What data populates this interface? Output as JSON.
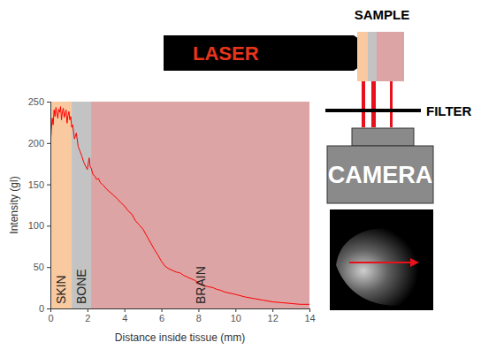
{
  "chart_data": {
    "type": "line",
    "x_label": "Distance inside tissue (mm)",
    "y_label": "Intensity (gl)",
    "color": "#ff0000",
    "xlim": [
      0,
      14
    ],
    "xticks": [
      0,
      2,
      4,
      6,
      8,
      10,
      12,
      14
    ],
    "ylim": [
      0,
      250
    ],
    "yticks": [
      0,
      50,
      100,
      150,
      200,
      250
    ],
    "regions": [
      {
        "label": "SKIN",
        "x0": 0,
        "x1": 1.15,
        "color": "#f9c9a0"
      },
      {
        "label": "BONE",
        "x0": 1.15,
        "x1": 2.2,
        "color": "#c3c3c3"
      },
      {
        "label": "BRAIN",
        "x0": 2.2,
        "x1": 14,
        "color": "#dca4a4"
      }
    ],
    "x": [
      0,
      0.05,
      0.1,
      0.15,
      0.2,
      0.25,
      0.3,
      0.35,
      0.4,
      0.45,
      0.5,
      0.55,
      0.6,
      0.65,
      0.7,
      0.75,
      0.8,
      0.85,
      0.9,
      0.95,
      1.0,
      1.05,
      1.1,
      1.15,
      1.2,
      1.3,
      1.4,
      1.5,
      1.6,
      1.7,
      1.8,
      1.9,
      2.0,
      2.05,
      2.1,
      2.15,
      2.2,
      2.3,
      2.4,
      2.5,
      2.6,
      2.7,
      2.8,
      2.9,
      3.0,
      3.2,
      3.4,
      3.6,
      3.8,
      4.0,
      4.2,
      4.4,
      4.6,
      4.8,
      5.0,
      5.2,
      5.4,
      5.6,
      5.8,
      6.0,
      6.2,
      6.4,
      6.6,
      6.8,
      7.0,
      7.2,
      7.4,
      7.6,
      7.8,
      8.0,
      8.2,
      8.4,
      8.6,
      8.8,
      9.0,
      9.2,
      9.4,
      9.6,
      9.8,
      10.0,
      10.5,
      11.0,
      11.5,
      12.0,
      12.5,
      13.0,
      13.5,
      14.0
    ],
    "values": [
      198,
      215,
      230,
      222,
      240,
      232,
      243,
      236,
      230,
      241,
      237,
      244,
      228,
      238,
      242,
      231,
      236,
      240,
      224,
      233,
      238,
      228,
      232,
      219,
      222,
      205,
      212,
      196,
      190,
      184,
      177,
      172,
      168,
      176,
      182,
      171,
      170,
      162,
      160,
      156,
      157,
      152,
      150,
      148,
      145,
      141,
      137,
      133,
      128,
      124,
      118,
      114,
      106,
      101,
      96,
      88,
      80,
      72,
      65,
      57,
      51,
      48,
      46,
      44,
      43,
      40,
      38,
      36,
      34,
      31,
      29,
      27,
      26,
      25,
      23,
      22,
      20,
      19,
      18,
      17,
      14,
      12,
      10,
      8,
      7,
      6,
      5,
      5
    ]
  },
  "diagram": {
    "laser": "LASER",
    "sample": "SAMPLE",
    "filter": "FILTER",
    "camera": "CAMERA"
  }
}
